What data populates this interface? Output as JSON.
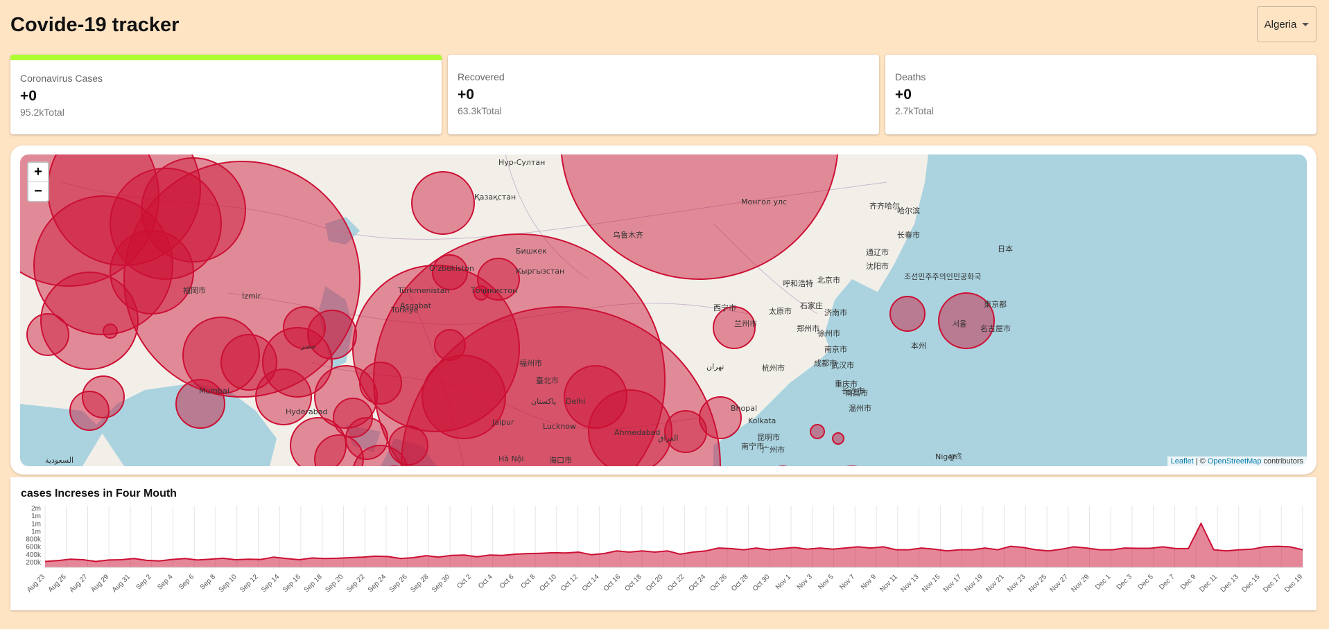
{
  "header": {
    "title": "Covide-19 tracker",
    "country_selected": "Algeria"
  },
  "cards": [
    {
      "label": "Coronavirus Cases",
      "value": "+0",
      "total": "95.2kTotal",
      "selected": true,
      "accent": "#adff2f"
    },
    {
      "label": "Recovered",
      "value": "+0",
      "total": "63.3kTotal",
      "selected": false
    },
    {
      "label": "Deaths",
      "value": "+0",
      "total": "2.7kTotal",
      "selected": false
    }
  ],
  "map": {
    "zoom_in": "+",
    "zoom_out": "−",
    "attribution": {
      "leaflet": "Leaflet",
      "sep": " | © ",
      "osm": "OpenStreetMap",
      "rest": " contributors"
    },
    "circle_color": "#cc1034",
    "water_color": "#aad3df",
    "land_color": "#f2efe9",
    "labels": [
      "Нур-Султан",
      "Қазақстан",
      "Монгол улс",
      "Бишкек",
      "Oʻzbekiston",
      "Кыргызстан",
      "Тоҷикистон",
      "乌鲁木齐",
      "齐齐哈尔",
      "哈尔滨",
      "长春市",
      "日本",
      "通辽市",
      "沈阳市",
      "呼和浩特",
      "北京市",
      "조선민주주의인민공화국",
      "Türkmenistan",
      "Aşgabat",
      "西宁市",
      "兰州市",
      "石家庄",
      "济南市",
      "太原市",
      "郑州市",
      "徐州市",
      "南京市",
      "서울",
      "名古屋市",
      "東京都",
      "本州",
      "福岡市",
      "İzmir",
      "Türkiye",
      "تهران",
      "成都市",
      "武汉市",
      "杭州市",
      "重庆市",
      "长沙市",
      "南昌市",
      "温州市",
      "福州市",
      "臺北市",
      "پاکستان",
      "Delhi",
      "Jaipur",
      "Lucknow",
      "Ahmedabad",
      "Bhopal",
      "Kolkata",
      "昆明市",
      "南宁市",
      "广州市",
      "Hà Nội",
      "海口市",
      "Mumbai",
      "Hyderabad",
      "مصر",
      "السعودية",
      "العراق",
      "Niger",
      "মুম্বই"
    ]
  },
  "chart": {
    "title": "cases Increses in Four Mouth",
    "line_color": "#cc1034",
    "fill_color": "rgba(204,16,52,0.5)"
  },
  "chart_data": {
    "type": "area",
    "title": "cases Increses in Four Mouth",
    "y_ticks": [
      "2m",
      "1m",
      "1m",
      "1m",
      "800k",
      "600k",
      "400k",
      "200k"
    ],
    "ylim": [
      0,
      2000000
    ],
    "x_tick_labels": [
      "Aug 23",
      "Aug 25",
      "Aug 27",
      "Aug 29",
      "Aug 31",
      "Sep 2",
      "Sep 4",
      "Sep 6",
      "Sep 8",
      "Sep 10",
      "Sep 12",
      "Sep 14",
      "Sep 16",
      "Sep 18",
      "Sep 20",
      "Sep 22",
      "Sep 24",
      "Sep 26",
      "Sep 28",
      "Sep 30",
      "Oct 2",
      "Oct 4",
      "Oct 6",
      "Oct 8",
      "Oct 10",
      "Oct 12",
      "Oct 14",
      "Oct 16",
      "Oct 18",
      "Oct 20",
      "Oct 22",
      "Oct 24",
      "Oct 26",
      "Oct 28",
      "Oct 30",
      "Nov 1",
      "Nov 3",
      "Nov 5",
      "Nov 7",
      "Nov 9",
      "Nov 11",
      "Nov 13",
      "Nov 15",
      "Nov 17",
      "Nov 19",
      "Nov 21",
      "Nov 23",
      "Nov 25",
      "Nov 27",
      "Nov 29",
      "Dec 1",
      "Dec 3",
      "Dec 5",
      "Dec 7",
      "Dec 9",
      "Dec 11",
      "Dec 13",
      "Dec 15",
      "Dec 17",
      "Dec 19"
    ],
    "values": [
      200000,
      230000,
      280000,
      260000,
      200000,
      250000,
      260000,
      300000,
      240000,
      220000,
      270000,
      300000,
      250000,
      280000,
      310000,
      260000,
      280000,
      270000,
      350000,
      300000,
      260000,
      320000,
      300000,
      310000,
      330000,
      350000,
      380000,
      370000,
      300000,
      330000,
      400000,
      350000,
      410000,
      420000,
      360000,
      420000,
      410000,
      450000,
      470000,
      480000,
      500000,
      490000,
      520000,
      430000,
      470000,
      560000,
      520000,
      560000,
      520000,
      560000,
      450000,
      520000,
      560000,
      660000,
      640000,
      600000,
      660000,
      600000,
      640000,
      680000,
      620000,
      660000,
      620000,
      660000,
      700000,
      660000,
      700000,
      600000,
      600000,
      660000,
      620000,
      560000,
      600000,
      600000,
      660000,
      600000,
      720000,
      680000,
      600000,
      560000,
      620000,
      700000,
      660000,
      600000,
      600000,
      660000,
      650000,
      650000,
      700000,
      640000,
      640000,
      1500000,
      600000,
      560000,
      600000,
      620000,
      700000,
      720000,
      700000,
      600000
    ]
  }
}
